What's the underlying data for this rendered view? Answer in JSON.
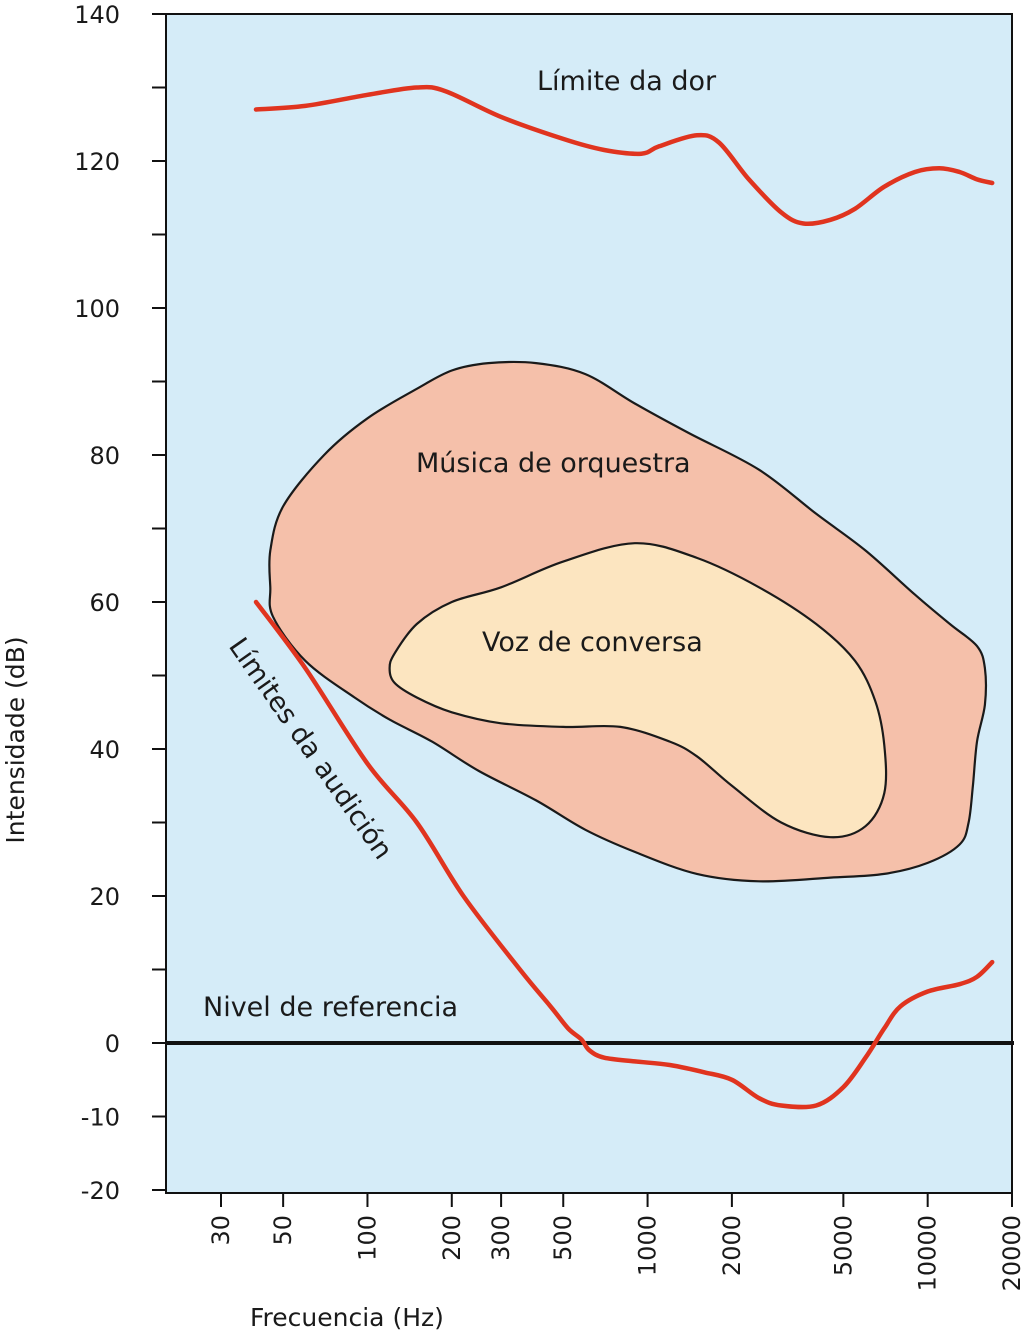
{
  "chart_data": {
    "type": "area",
    "x_scale": "log",
    "y_unit": "dB",
    "xlabel": "Frecuencia (Hz)",
    "ylabel": "Intensidade (dB)",
    "ylim": [
      -20,
      140
    ],
    "xlim": [
      20,
      20000
    ],
    "y_ticks_labeled": [
      140,
      120,
      100,
      80,
      60,
      40,
      20,
      0,
      -10,
      -20
    ],
    "y_ticks_minor": [
      130,
      110,
      90,
      70,
      50,
      30,
      10
    ],
    "x_ticks": [
      30,
      50,
      100,
      200,
      300,
      500,
      1000,
      2000,
      5000,
      10000,
      20000
    ],
    "colors": {
      "plot_background": "#d5ecf8",
      "threshold_lines": "#e0341f",
      "orchestra_fill": "#f5c0aa",
      "voice_fill": "#fce5c0",
      "region_outline": "#1a1a1a",
      "reference_line": "#111111"
    },
    "series": [
      {
        "name": "Límite da dor",
        "kind": "line",
        "points": [
          [
            40,
            127
          ],
          [
            60,
            127.5
          ],
          [
            100,
            129
          ],
          [
            150,
            130
          ],
          [
            190,
            129.5
          ],
          [
            300,
            126
          ],
          [
            500,
            123
          ],
          [
            700,
            121.5
          ],
          [
            950,
            121
          ],
          [
            1100,
            122
          ],
          [
            1500,
            123.5
          ],
          [
            1800,
            122.5
          ],
          [
            2300,
            117.5
          ],
          [
            3000,
            113
          ],
          [
            3600,
            111.5
          ],
          [
            4500,
            112
          ],
          [
            5500,
            113.5
          ],
          [
            7000,
            116.5
          ],
          [
            9000,
            118.5
          ],
          [
            11000,
            119
          ],
          [
            13000,
            118.5
          ],
          [
            15000,
            117.5
          ],
          [
            17000,
            117
          ]
        ]
      },
      {
        "name": "Límites da audición",
        "kind": "line",
        "points": [
          [
            40,
            60
          ],
          [
            60,
            51
          ],
          [
            100,
            38
          ],
          [
            150,
            30
          ],
          [
            220,
            20
          ],
          [
            350,
            10
          ],
          [
            450,
            5
          ],
          [
            520,
            2
          ],
          [
            580,
            0.5
          ],
          [
            620,
            -1
          ],
          [
            700,
            -2
          ],
          [
            900,
            -2.5
          ],
          [
            1200,
            -3
          ],
          [
            1600,
            -4
          ],
          [
            2000,
            -5
          ],
          [
            2500,
            -7.5
          ],
          [
            3000,
            -8.5
          ],
          [
            4000,
            -8.5
          ],
          [
            5000,
            -6
          ],
          [
            6000,
            -2
          ],
          [
            7000,
            2
          ],
          [
            8000,
            5
          ],
          [
            10000,
            7
          ],
          [
            13000,
            8
          ],
          [
            15000,
            9
          ],
          [
            17000,
            11
          ]
        ]
      },
      {
        "name": "Música de orquestra",
        "kind": "region",
        "points": [
          [
            45,
            67
          ],
          [
            50,
            73
          ],
          [
            70,
            80
          ],
          [
            100,
            85
          ],
          [
            150,
            89
          ],
          [
            200,
            91.5
          ],
          [
            270,
            92.5
          ],
          [
            400,
            92.5
          ],
          [
            600,
            91
          ],
          [
            900,
            87
          ],
          [
            1400,
            83
          ],
          [
            2500,
            78
          ],
          [
            4000,
            72
          ],
          [
            6000,
            67
          ],
          [
            9000,
            61
          ],
          [
            12000,
            57
          ],
          [
            15000,
            54
          ],
          [
            16000,
            51
          ],
          [
            16000,
            46
          ],
          [
            15000,
            41
          ],
          [
            14500,
            35
          ],
          [
            14000,
            30
          ],
          [
            13000,
            27
          ],
          [
            10000,
            24.5
          ],
          [
            7000,
            23
          ],
          [
            4500,
            22.5
          ],
          [
            2500,
            22
          ],
          [
            1500,
            23
          ],
          [
            900,
            26
          ],
          [
            600,
            29
          ],
          [
            400,
            33
          ],
          [
            250,
            37
          ],
          [
            170,
            41
          ],
          [
            120,
            44
          ],
          [
            90,
            47
          ],
          [
            60,
            52
          ],
          [
            46,
            58
          ],
          [
            45,
            62
          ]
        ]
      },
      {
        "name": "Voz de conversa",
        "kind": "region",
        "points": [
          [
            120,
            51
          ],
          [
            125,
            53
          ],
          [
            150,
            57
          ],
          [
            200,
            60
          ],
          [
            300,
            62
          ],
          [
            500,
            65.5
          ],
          [
            900,
            68
          ],
          [
            1500,
            66
          ],
          [
            2500,
            62
          ],
          [
            4000,
            57
          ],
          [
            5500,
            52
          ],
          [
            6500,
            46.5
          ],
          [
            7000,
            40.5
          ],
          [
            7000,
            34
          ],
          [
            6000,
            29.5
          ],
          [
            4500,
            28
          ],
          [
            3000,
            30
          ],
          [
            2000,
            35
          ],
          [
            1500,
            39
          ],
          [
            1200,
            41
          ],
          [
            800,
            43
          ],
          [
            500,
            43
          ],
          [
            300,
            43.5
          ],
          [
            200,
            45
          ],
          [
            150,
            47
          ],
          [
            125,
            49
          ]
        ]
      },
      {
        "name": "Nivel de referencia",
        "kind": "hline",
        "y": 0
      }
    ]
  }
}
